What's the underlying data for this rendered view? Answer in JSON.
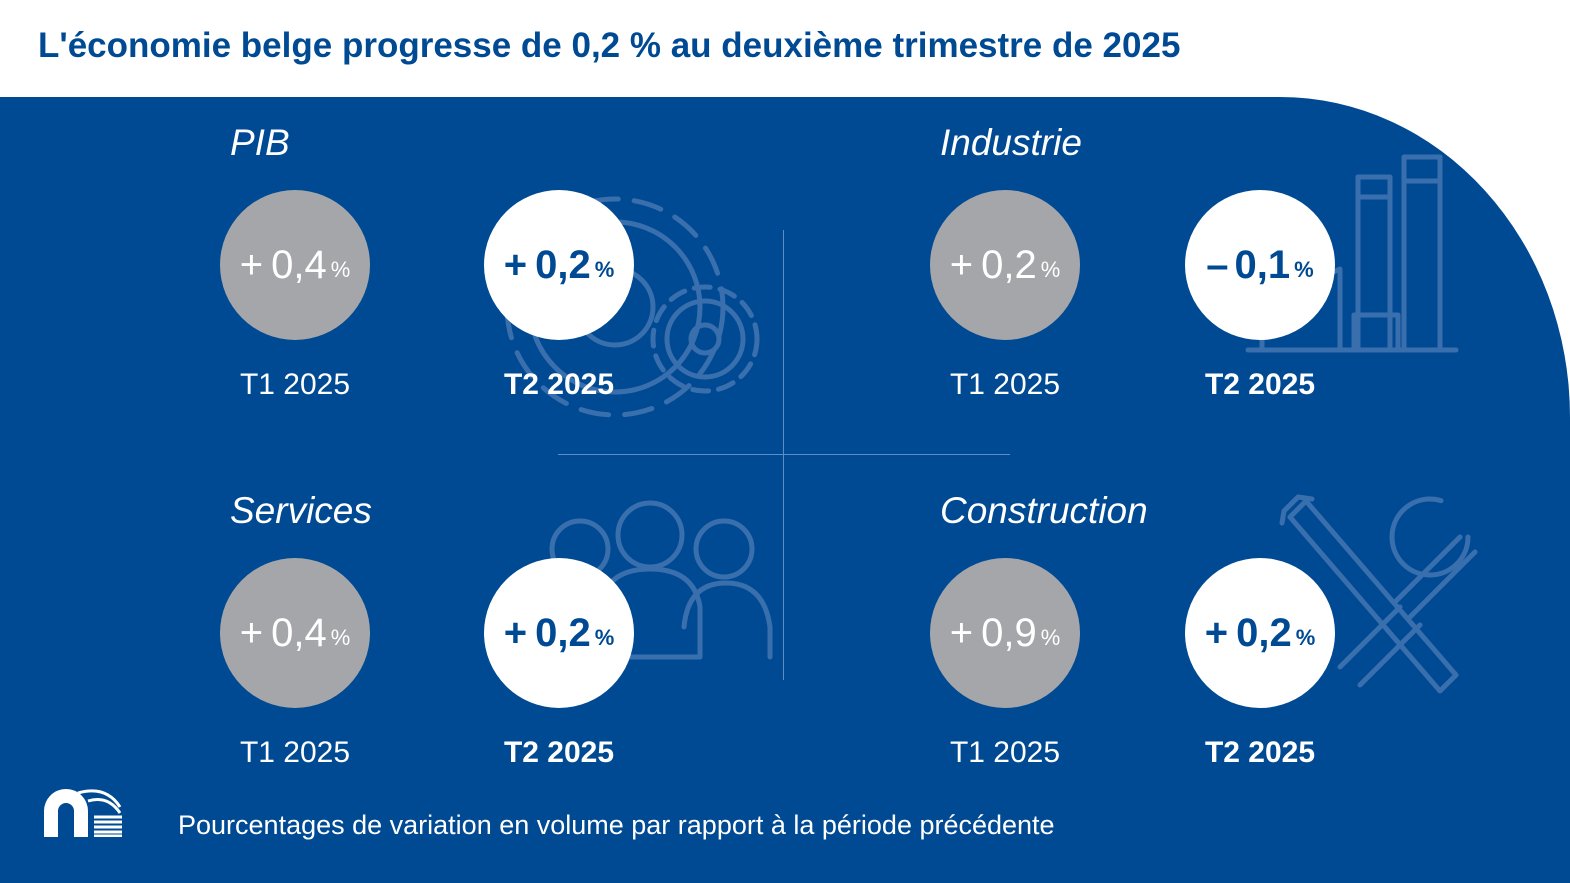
{
  "title": "L'économie belge progresse de 0,2 % au deuxième trimestre de 2025",
  "footnote": "Pourcentages de variation en volume par rapport à la période précédente",
  "colors": {
    "background_panel": "#004a93",
    "title": "#004a93",
    "previous_circle": "#a5a6aa",
    "current_circle": "#ffffff",
    "icon_stroke": "#3a6fae",
    "divider": "#5f8cc2"
  },
  "icons": {
    "pib": "gears-icon",
    "industrie": "factory-icon",
    "services": "people-icon",
    "construction": "tools-icon",
    "logo": "nbb-logo"
  },
  "sections": {
    "pib": {
      "label": "PIB",
      "previous": {
        "sign": "+",
        "value": "0,4",
        "unit": "%",
        "period": "T1 2025"
      },
      "current": {
        "sign": "+",
        "value": "0,2",
        "unit": "%",
        "period": "T2 2025"
      }
    },
    "industrie": {
      "label": "Industrie",
      "previous": {
        "sign": "+",
        "value": "0,2",
        "unit": "%",
        "period": "T1 2025"
      },
      "current": {
        "sign": "–",
        "value": "0,1",
        "unit": "%",
        "period": "T2 2025"
      }
    },
    "services": {
      "label": "Services",
      "previous": {
        "sign": "+",
        "value": "0,4",
        "unit": "%",
        "period": "T1 2025"
      },
      "current": {
        "sign": "+",
        "value": "0,2",
        "unit": "%",
        "period": "T2 2025"
      }
    },
    "construction": {
      "label": "Construction",
      "previous": {
        "sign": "+",
        "value": "0,9",
        "unit": "%",
        "period": "T1 2025"
      },
      "current": {
        "sign": "+",
        "value": "0,2",
        "unit": "%",
        "period": "T2 2025"
      }
    }
  }
}
